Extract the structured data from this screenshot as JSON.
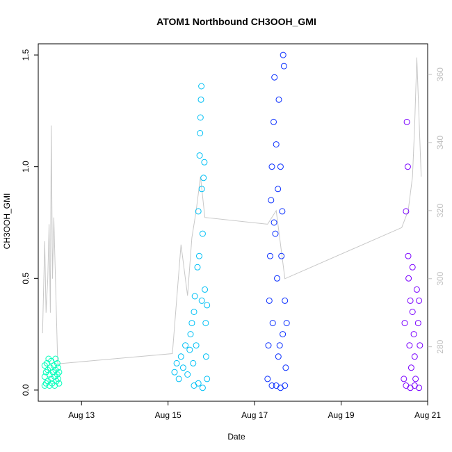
{
  "chart_data": {
    "type": "scatter",
    "title": "ATOM1 Northbound CH3OOH_GMI",
    "xlabel": "Date",
    "ylabel": "CH3OOH_GMI",
    "x_ticks": [
      "Aug 13",
      "Aug 15",
      "Aug 17",
      "Aug 19",
      "Aug 21"
    ],
    "x_range": [
      "Aug 12.0",
      "Aug 21.0"
    ],
    "ylim": [
      -0.05,
      1.55
    ],
    "y_ticks": [
      "0.0",
      "0.5",
      "1.0",
      "1.5"
    ],
    "y2_ticks": [
      "280",
      "300",
      "320",
      "340",
      "360"
    ],
    "y2lim": [
      264,
      369
    ],
    "grid": false,
    "legend": "none",
    "series": [
      {
        "color": "#00ffbb",
        "points": [
          [
            12.15,
            0.02
          ],
          [
            12.15,
            0.06
          ],
          [
            12.15,
            0.11
          ],
          [
            12.18,
            0.03
          ],
          [
            12.18,
            0.08
          ],
          [
            12.2,
            0.12
          ],
          [
            12.22,
            0.04
          ],
          [
            12.22,
            0.09
          ],
          [
            12.24,
            0.14
          ],
          [
            12.26,
            0.02
          ],
          [
            12.26,
            0.07
          ],
          [
            12.28,
            0.1
          ],
          [
            12.3,
            0.05
          ],
          [
            12.3,
            0.13
          ],
          [
            12.32,
            0.03
          ],
          [
            12.34,
            0.08
          ],
          [
            12.36,
            0.11
          ],
          [
            12.38,
            0.02
          ],
          [
            12.38,
            0.06
          ],
          [
            12.4,
            0.09
          ],
          [
            12.4,
            0.14
          ],
          [
            12.42,
            0.04
          ],
          [
            12.44,
            0.07
          ],
          [
            12.44,
            0.12
          ],
          [
            12.46,
            0.05
          ],
          [
            12.46,
            0.1
          ],
          [
            12.48,
            0.03
          ],
          [
            12.48,
            0.08
          ]
        ]
      },
      {
        "color": "#00c0f5",
        "points": [
          [
            15.15,
            0.08
          ],
          [
            15.2,
            0.12
          ],
          [
            15.25,
            0.05
          ],
          [
            15.3,
            0.15
          ],
          [
            15.35,
            0.1
          ],
          [
            15.4,
            0.2
          ],
          [
            15.45,
            0.07
          ],
          [
            15.5,
            0.18
          ],
          [
            15.52,
            0.25
          ],
          [
            15.55,
            0.3
          ],
          [
            15.58,
            0.12
          ],
          [
            15.6,
            0.35
          ],
          [
            15.62,
            0.42
          ],
          [
            15.65,
            0.2
          ],
          [
            15.68,
            0.55
          ],
          [
            15.7,
            0.8
          ],
          [
            15.72,
            0.6
          ],
          [
            15.73,
            1.05
          ],
          [
            15.74,
            1.15
          ],
          [
            15.75,
            1.22
          ],
          [
            15.76,
            1.3
          ],
          [
            15.77,
            1.36
          ],
          [
            15.78,
            0.9
          ],
          [
            15.8,
            0.7
          ],
          [
            15.82,
            0.95
          ],
          [
            15.84,
            1.02
          ],
          [
            15.85,
            0.45
          ],
          [
            15.87,
            0.3
          ],
          [
            15.88,
            0.15
          ],
          [
            15.9,
            0.05
          ],
          [
            15.9,
            0.38
          ],
          [
            15.8,
            0.01
          ],
          [
            15.7,
            0.03
          ],
          [
            15.6,
            0.02
          ],
          [
            15.78,
            0.4
          ]
        ]
      },
      {
        "color": "#0a2fff",
        "points": [
          [
            17.3,
            0.05
          ],
          [
            17.32,
            0.2
          ],
          [
            17.34,
            0.4
          ],
          [
            17.36,
            0.6
          ],
          [
            17.38,
            0.85
          ],
          [
            17.4,
            1.0
          ],
          [
            17.42,
            0.3
          ],
          [
            17.44,
            1.2
          ],
          [
            17.46,
            1.4
          ],
          [
            17.48,
            0.7
          ],
          [
            17.5,
            1.1
          ],
          [
            17.52,
            0.5
          ],
          [
            17.54,
            0.9
          ],
          [
            17.56,
            1.3
          ],
          [
            17.58,
            0.2
          ],
          [
            17.6,
            1.0
          ],
          [
            17.62,
            0.6
          ],
          [
            17.64,
            0.8
          ],
          [
            17.66,
            1.5
          ],
          [
            17.68,
            1.45
          ],
          [
            17.7,
            0.4
          ],
          [
            17.72,
            0.1
          ],
          [
            17.74,
            0.3
          ],
          [
            17.5,
            0.02
          ],
          [
            17.6,
            0.01
          ],
          [
            17.7,
            0.02
          ],
          [
            17.4,
            0.02
          ],
          [
            17.55,
            0.15
          ],
          [
            17.65,
            0.25
          ],
          [
            17.45,
            0.75
          ]
        ]
      },
      {
        "color": "#7a00ff",
        "points": [
          [
            20.45,
            0.05
          ],
          [
            20.47,
            0.3
          ],
          [
            20.5,
            0.8
          ],
          [
            20.52,
            1.2
          ],
          [
            20.54,
            1.0
          ],
          [
            20.56,
            0.5
          ],
          [
            20.58,
            0.2
          ],
          [
            20.6,
            0.4
          ],
          [
            20.62,
            0.1
          ],
          [
            20.65,
            0.35
          ],
          [
            20.68,
            0.25
          ],
          [
            20.7,
            0.15
          ],
          [
            20.72,
            0.05
          ],
          [
            20.75,
            0.45
          ],
          [
            20.78,
            0.3
          ],
          [
            20.8,
            0.4
          ],
          [
            20.82,
            0.2
          ],
          [
            20.5,
            0.02
          ],
          [
            20.6,
            0.01
          ],
          [
            20.7,
            0.02
          ],
          [
            20.8,
            0.01
          ],
          [
            20.55,
            0.6
          ],
          [
            20.65,
            0.55
          ]
        ]
      }
    ],
    "y2_line_color": "#c8c8c8",
    "y2_line": [
      [
        12.1,
        284
      ],
      [
        12.15,
        311
      ],
      [
        12.18,
        290
      ],
      [
        12.22,
        300
      ],
      [
        12.25,
        316
      ],
      [
        12.28,
        290
      ],
      [
        12.3,
        345
      ],
      [
        12.33,
        300
      ],
      [
        12.36,
        318
      ],
      [
        12.45,
        275
      ],
      [
        15.1,
        278
      ],
      [
        15.3,
        310
      ],
      [
        15.45,
        295
      ],
      [
        15.55,
        312
      ],
      [
        15.65,
        320
      ],
      [
        15.75,
        330
      ],
      [
        15.85,
        318
      ],
      [
        17.3,
        316
      ],
      [
        17.5,
        320
      ],
      [
        17.7,
        300
      ],
      [
        20.4,
        315
      ],
      [
        20.55,
        320
      ],
      [
        20.65,
        330
      ],
      [
        20.7,
        345
      ],
      [
        20.75,
        365
      ],
      [
        20.85,
        330
      ]
    ]
  }
}
